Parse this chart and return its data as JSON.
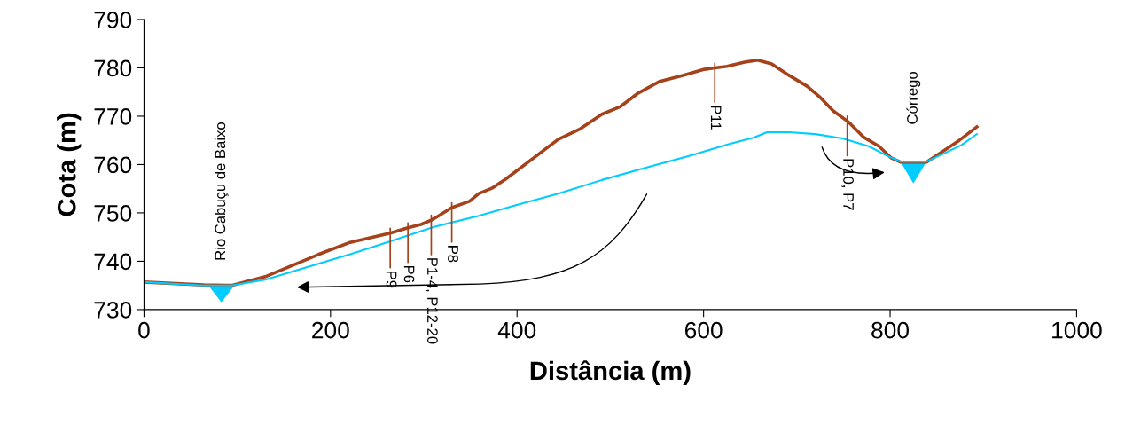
{
  "chart_data": {
    "type": "line",
    "xlabel": "Distância (m)",
    "ylabel": "Cota (m)",
    "xlim": [
      0,
      1000
    ],
    "xticks": [
      0,
      200,
      400,
      600,
      800,
      1000
    ],
    "ylim": [
      730,
      790
    ],
    "yticks": [
      730,
      740,
      750,
      760,
      770,
      780,
      790
    ],
    "grid": false,
    "legend": false,
    "marker": "none",
    "line_style": "solid",
    "series": [
      {
        "color": "#a5421b",
        "x": [
          0,
          64,
          94,
          130,
          187,
          221,
          264,
          283,
          297,
          308,
          316,
          330,
          349,
          359,
          373,
          388,
          444,
          468,
          491,
          511,
          530,
          553,
          577,
          601,
          612,
          625,
          644,
          658,
          673,
          692,
          711,
          725,
          739,
          754,
          758,
          772,
          788,
          801,
          811,
          839,
          853,
          872,
          893
        ],
        "values": [
          735.7,
          735.1,
          735.0,
          736.8,
          741.4,
          743.9,
          745.8,
          746.9,
          747.6,
          748.5,
          749.4,
          751.1,
          752.4,
          754.0,
          755.1,
          757.0,
          765.2,
          767.4,
          770.4,
          772.0,
          774.8,
          777.2,
          778.4,
          779.7,
          780.0,
          780.3,
          781.2,
          781.6,
          780.8,
          778.4,
          776.2,
          773.9,
          771.1,
          769.0,
          768.3,
          765.6,
          763.8,
          761.4,
          760.5,
          760.5,
          762.3,
          764.7,
          767.8
        ]
      },
      {
        "color": "#00ccff",
        "x": [
          0,
          64,
          83,
          94,
          130,
          187,
          225,
          264,
          311,
          359,
          397,
          444,
          491,
          539,
          587,
          625,
          654,
          668,
          692,
          720,
          749,
          777,
          796,
          811,
          825,
          839,
          858,
          877,
          893
        ],
        "values": [
          735.7,
          735.0,
          735.0,
          735.0,
          736.2,
          739.5,
          741.7,
          744.1,
          747.1,
          749.4,
          751.5,
          754.0,
          756.8,
          759.4,
          761.9,
          764.1,
          765.6,
          766.7,
          766.7,
          766.3,
          765.4,
          763.8,
          761.9,
          760.6,
          760.6,
          760.6,
          762.3,
          764.1,
          766.3
        ]
      }
    ],
    "annotations": [
      {
        "text": "P9",
        "x": 264,
        "y": 745.8
      },
      {
        "text": "P6",
        "x": 283,
        "y": 746.9
      },
      {
        "text": "P1-4, P12-20",
        "x": 308,
        "y": 748.5
      },
      {
        "text": "P8",
        "x": 330,
        "y": 751.1
      },
      {
        "text": "P11",
        "x": 612,
        "y": 780.0
      },
      {
        "text": "P10, P7",
        "x": 754,
        "y": 769.0
      },
      {
        "text": "Rio Cabuçu de Baixo",
        "x": 83,
        "y": 735.0
      },
      {
        "text": "Córrego",
        "x": 825,
        "y": 760.6
      }
    ]
  }
}
